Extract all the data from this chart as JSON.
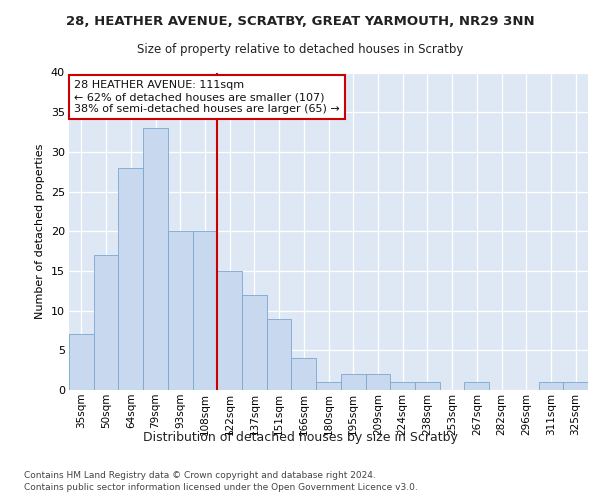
{
  "title1": "28, HEATHER AVENUE, SCRATBY, GREAT YARMOUTH, NR29 3NN",
  "title2": "Size of property relative to detached houses in Scratby",
  "xlabel": "Distribution of detached houses by size in Scratby",
  "ylabel": "Number of detached properties",
  "categories": [
    "35sqm",
    "50sqm",
    "64sqm",
    "79sqm",
    "93sqm",
    "108sqm",
    "122sqm",
    "137sqm",
    "151sqm",
    "166sqm",
    "180sqm",
    "195sqm",
    "209sqm",
    "224sqm",
    "238sqm",
    "253sqm",
    "267sqm",
    "282sqm",
    "296sqm",
    "311sqm",
    "325sqm"
  ],
  "values": [
    7,
    17,
    28,
    33,
    20,
    20,
    15,
    12,
    9,
    4,
    1,
    2,
    2,
    1,
    1,
    0,
    1,
    0,
    0,
    1,
    1
  ],
  "bar_color": "#c8d8ee",
  "bar_edgecolor": "#7aa8d0",
  "vline_color": "#cc0000",
  "annotation_line1": "28 HEATHER AVENUE: 111sqm",
  "annotation_line2": "← 62% of detached houses are smaller (107)",
  "annotation_line3": "38% of semi-detached houses are larger (65) →",
  "annotation_box_facecolor": "#ffffff",
  "annotation_box_edgecolor": "#cc0000",
  "ylim": [
    0,
    40
  ],
  "yticks": [
    0,
    5,
    10,
    15,
    20,
    25,
    30,
    35,
    40
  ],
  "footer1": "Contains HM Land Registry data © Crown copyright and database right 2024.",
  "footer2": "Contains public sector information licensed under the Open Government Licence v3.0.",
  "fig_facecolor": "#ffffff",
  "plot_facecolor": "#dde8f4"
}
